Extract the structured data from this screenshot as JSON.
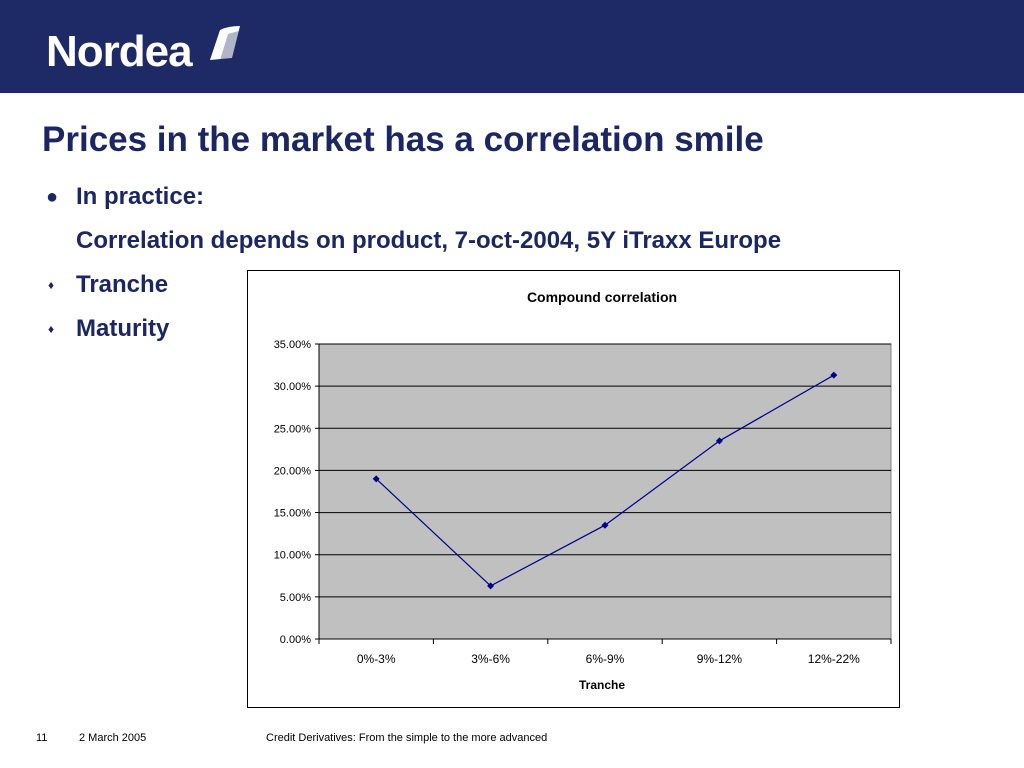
{
  "header": {
    "logo_text": "Nordea",
    "band_color": "#1e2a66"
  },
  "slide": {
    "title": "Prices in the market has a correlation smile",
    "bullets": [
      {
        "marker": "●",
        "text": "In practice:"
      },
      {
        "marker": "",
        "text": "Correlation depends on product, 7-oct-2004, 5Y iTraxx Europe"
      },
      {
        "marker": "♦",
        "text": "Tranche"
      },
      {
        "marker": "♦",
        "text": "Maturity"
      }
    ],
    "text_color": "#1b2663"
  },
  "chart_data": {
    "type": "line",
    "title": "Compound correlation",
    "xlabel": "Tranche",
    "ylabel": "",
    "categories": [
      "0%-3%",
      "3%-6%",
      "6%-9%",
      "9%-12%",
      "12%-22%"
    ],
    "series": [
      {
        "values": [
          19.0,
          6.3,
          13.5,
          23.5,
          31.3
        ],
        "color": "#00008b"
      }
    ],
    "ylim": [
      0,
      35
    ],
    "yticks": [
      "0.00%",
      "5.00%",
      "10.00%",
      "15.00%",
      "20.00%",
      "25.00%",
      "30.00%",
      "35.00%"
    ],
    "plot_background": "#c0c0c0",
    "grid": true,
    "legend": "none"
  },
  "footer": {
    "page_number": "11",
    "date": "2 March 2005",
    "subject": "Credit Derivatives: From the simple to the more advanced"
  }
}
